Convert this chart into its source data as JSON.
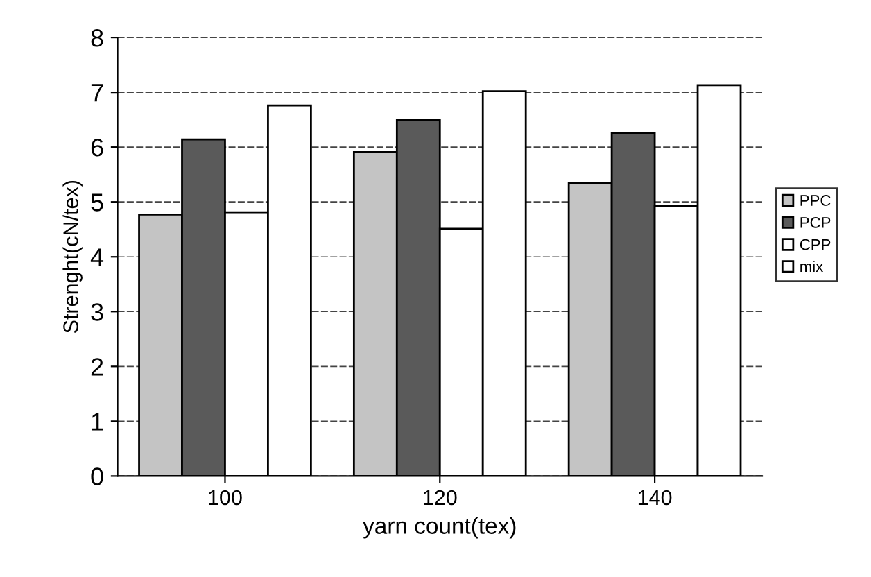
{
  "chart_data": {
    "type": "bar",
    "xlabel": "yarn count(tex)",
    "ylabel": "Strenght(cN/tex)",
    "categories": [
      "100",
      "120",
      "140"
    ],
    "series": [
      {
        "name": "PPC",
        "color": "#c4c4c4",
        "values": [
          4.77,
          5.91,
          5.34
        ]
      },
      {
        "name": "PCP",
        "color": "#5a5a5a",
        "values": [
          6.14,
          6.49,
          6.26
        ]
      },
      {
        "name": "CPP",
        "color": "#ffffff",
        "values": [
          4.81,
          4.51,
          4.93
        ]
      },
      {
        "name": "mix",
        "color": "#ffffff",
        "values": [
          6.76,
          7.02,
          7.13
        ]
      }
    ],
    "ylim": [
      0,
      8
    ],
    "yticks": [
      0,
      1,
      2,
      3,
      4,
      5,
      6,
      7,
      8
    ],
    "grid": "y",
    "legend": "right"
  }
}
